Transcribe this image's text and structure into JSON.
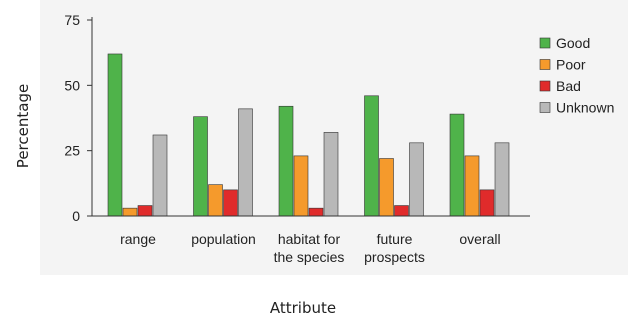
{
  "chart_data": {
    "type": "bar",
    "xlabel": "Attribute",
    "ylabel": "Percentage",
    "ylim": [
      0,
      75
    ],
    "yticks": [
      "0",
      "25",
      "50",
      "75"
    ],
    "categories": [
      [
        "range"
      ],
      [
        "population"
      ],
      [
        "habitat for",
        "the species"
      ],
      [
        "future",
        "prospects"
      ],
      [
        "overall"
      ]
    ],
    "series": [
      {
        "name": "Good",
        "color": "#4fb34a",
        "values": [
          62,
          38,
          42,
          46,
          39
        ]
      },
      {
        "name": "Poor",
        "color": "#f59a2c",
        "values": [
          3,
          12,
          23,
          22,
          23
        ]
      },
      {
        "name": "Bad",
        "color": "#e02b2b",
        "values": [
          4,
          10,
          3,
          4,
          10
        ]
      },
      {
        "name": "Unknown",
        "color": "#b8b8b8",
        "values": [
          31,
          41,
          32,
          28,
          28
        ]
      }
    ],
    "legend_position": "right",
    "grid": false,
    "plot_background": "#f4f4f4"
  }
}
